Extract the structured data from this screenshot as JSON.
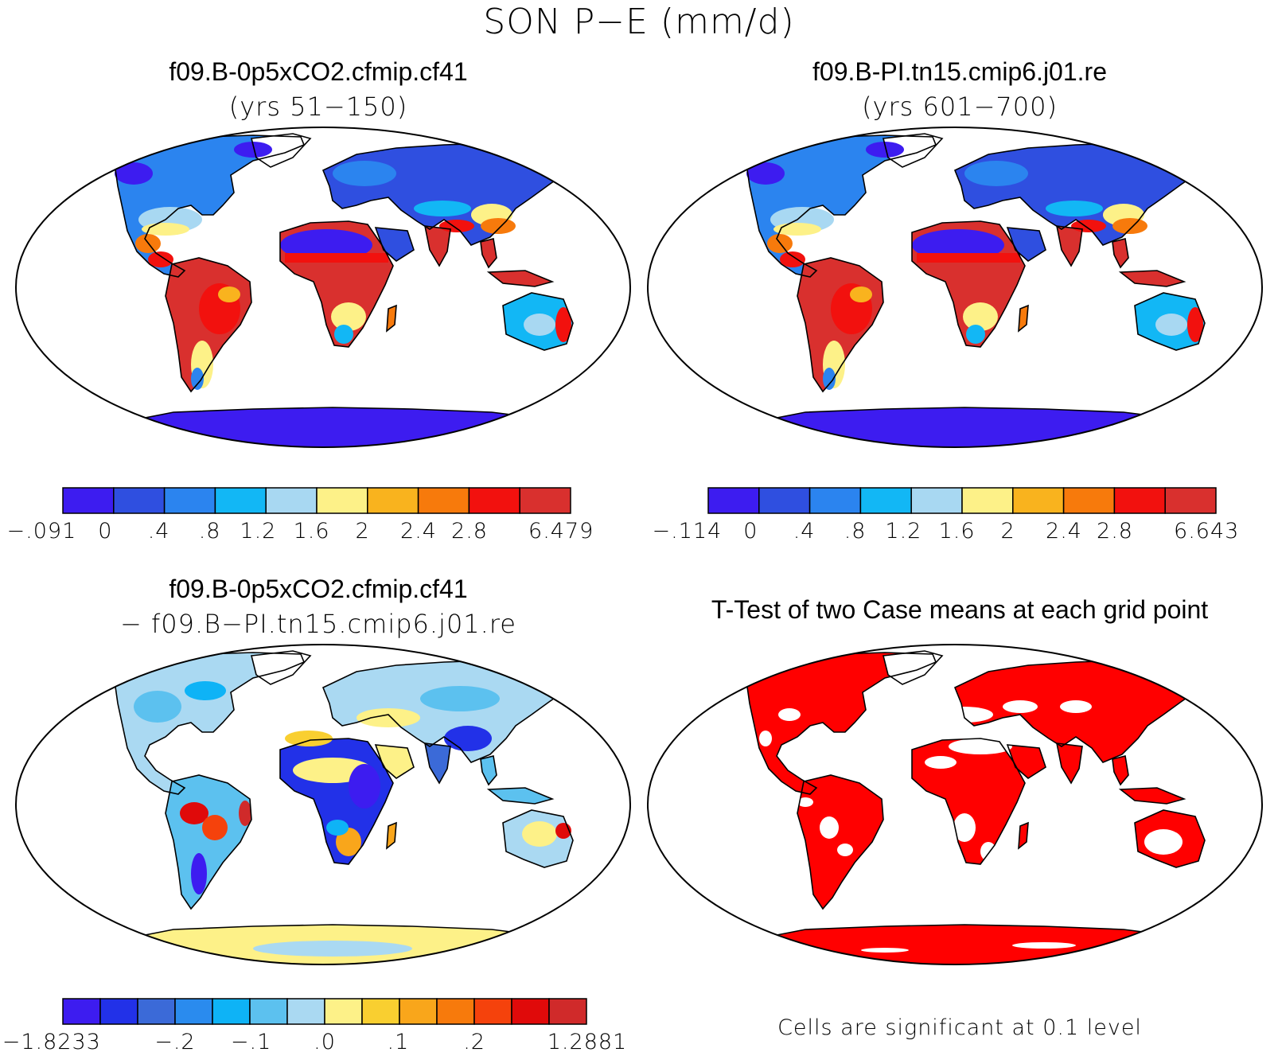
{
  "title": "SON P−E (mm/d)",
  "panels": {
    "case1": {
      "title": "f09.B-0p5xCO2.cfmip.cf41",
      "subtitle": "(yrs 51−150)",
      "colorbar_labels": [
        "−.091",
        "0",
        ".4",
        ".8",
        "1.2",
        "1.6",
        "2",
        "2.4",
        "2.8",
        "6.479"
      ],
      "colors": [
        "#3d1cf0",
        "#2f4fe0",
        "#2b84ef",
        "#12b7f5",
        "#a8d8f2",
        "#fdf188",
        "#f9b31e",
        "#f77a0c",
        "#f2110e",
        "#d9302e"
      ]
    },
    "case2": {
      "title": "f09.B-PI.tn15.cmip6.j01.re",
      "subtitle": "(yrs 601−700)",
      "colorbar_labels": [
        "−.114",
        "0",
        ".4",
        ".8",
        "1.2",
        "1.6",
        "2",
        "2.4",
        "2.8",
        "6.643"
      ],
      "colors": [
        "#3d1cf0",
        "#2f4fe0",
        "#2b84ef",
        "#12b7f5",
        "#a8d8f2",
        "#fdf188",
        "#f9b31e",
        "#f77a0c",
        "#f2110e",
        "#d9302e"
      ]
    },
    "diff": {
      "title": "f09.B-0p5xCO2.cfmip.cf41",
      "subtitle": "− f09.B−PI.tn15.cmip6.j01.re",
      "colorbar_labels": [
        "−1.8233",
        "−.2",
        "−.1",
        ".0",
        ".1",
        ".2",
        "1.2881"
      ],
      "colors": [
        "#3d1cf0",
        "#2231e8",
        "#3b6ad8",
        "#2a8bee",
        "#0eb3f6",
        "#5cc1ef",
        "#aad9f2",
        "#fdf188",
        "#f9cf30",
        "#f9a61b",
        "#f77a0c",
        "#f5420c",
        "#e00a0a",
        "#d02a2a"
      ]
    },
    "ttest": {
      "title": "T-Test of two Case means at each grid point",
      "note": "Cells are significant at 0.1 level",
      "signif_color": "#ff0000"
    }
  }
}
